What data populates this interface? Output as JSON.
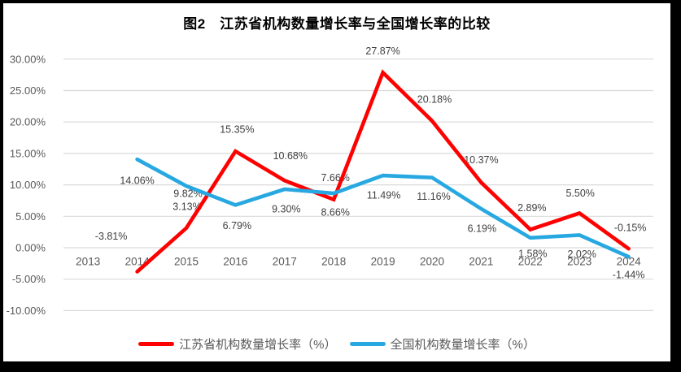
{
  "frame": {
    "background": "#000000",
    "canvas_background": "#ffffff"
  },
  "chart_data": {
    "type": "line",
    "title": "图2　江苏省机构数量增长率与全国增长率的比较",
    "categories": [
      "2013",
      "2014",
      "2015",
      "2016",
      "2017",
      "2018",
      "2019",
      "2020",
      "2021",
      "2022",
      "2023",
      "2024"
    ],
    "ylim": [
      -10,
      30
    ],
    "ytick_step": 5,
    "ytick_labels": [
      "30.00%",
      "25.00%",
      "20.00%",
      "15.00%",
      "10.00%",
      "5.00%",
      "0.00%",
      "-5.00%",
      "-10.00%"
    ],
    "grid": true,
    "gridline_color": "#D9D9D9",
    "legend_position": "bottom",
    "text_colors": {
      "title": "#000000",
      "axis": "#595959",
      "data_label": "#404040",
      "legend": "#595959"
    },
    "series": [
      {
        "name": "江苏省机构数量增长率（%）",
        "color": "#FF0000",
        "start_category": "2014",
        "values": [
          -3.81,
          3.13,
          15.35,
          10.68,
          7.66,
          27.87,
          20.18,
          10.37,
          2.89,
          5.5,
          -0.15
        ],
        "labels": [
          "-3.81%",
          "3.13%",
          "15.35%",
          "10.68%",
          "7.66%",
          "27.87%",
          "20.18%",
          "10.37%",
          "2.89%",
          "5.50%",
          "-0.15%"
        ]
      },
      {
        "name": "全国机构数量增长率（%）",
        "color": "#28A8E0",
        "start_category": "2014",
        "values": [
          14.06,
          9.82,
          6.79,
          9.3,
          8.66,
          11.49,
          11.16,
          6.19,
          1.58,
          2.02,
          -1.44
        ],
        "labels": [
          "14.06%",
          "9.82%",
          "6.79%",
          "9.30%",
          "8.66%",
          "11.49%",
          "11.16%",
          "6.19%",
          "1.58%",
          "2.02%",
          "-1.44%"
        ]
      }
    ]
  }
}
